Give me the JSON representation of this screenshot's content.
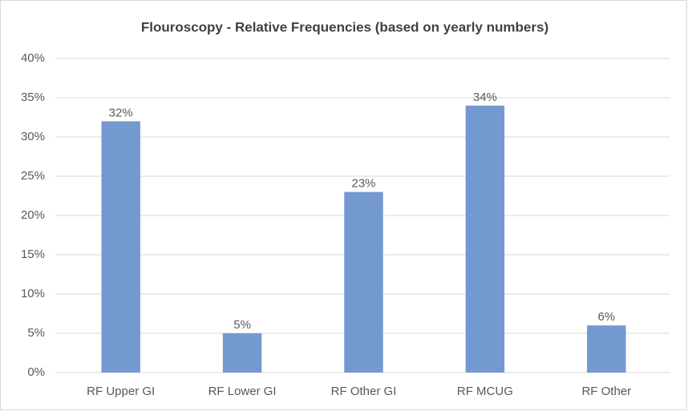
{
  "chart_data": {
    "type": "bar",
    "title": "Flouroscopy - Relative Frequencies (based on yearly numbers)",
    "categories": [
      "RF Upper GI",
      "RF Lower GI",
      "RF Other GI",
      "RF MCUG",
      "RF Other"
    ],
    "values": [
      32,
      5,
      23,
      34,
      6
    ],
    "value_labels": [
      "32%",
      "5%",
      "23%",
      "34%",
      "6%"
    ],
    "color": "#7399d0",
    "ylim": [
      0,
      40
    ],
    "yticks": [
      {
        "value": 0,
        "label": "0%"
      },
      {
        "value": 5,
        "label": "5%"
      },
      {
        "value": 10,
        "label": "10%"
      },
      {
        "value": 15,
        "label": "15%"
      },
      {
        "value": 20,
        "label": "20%"
      },
      {
        "value": 25,
        "label": "25%"
      },
      {
        "value": 30,
        "label": "30%"
      },
      {
        "value": 35,
        "label": "35%"
      },
      {
        "value": 40,
        "label": "40%"
      }
    ],
    "grid": true
  }
}
